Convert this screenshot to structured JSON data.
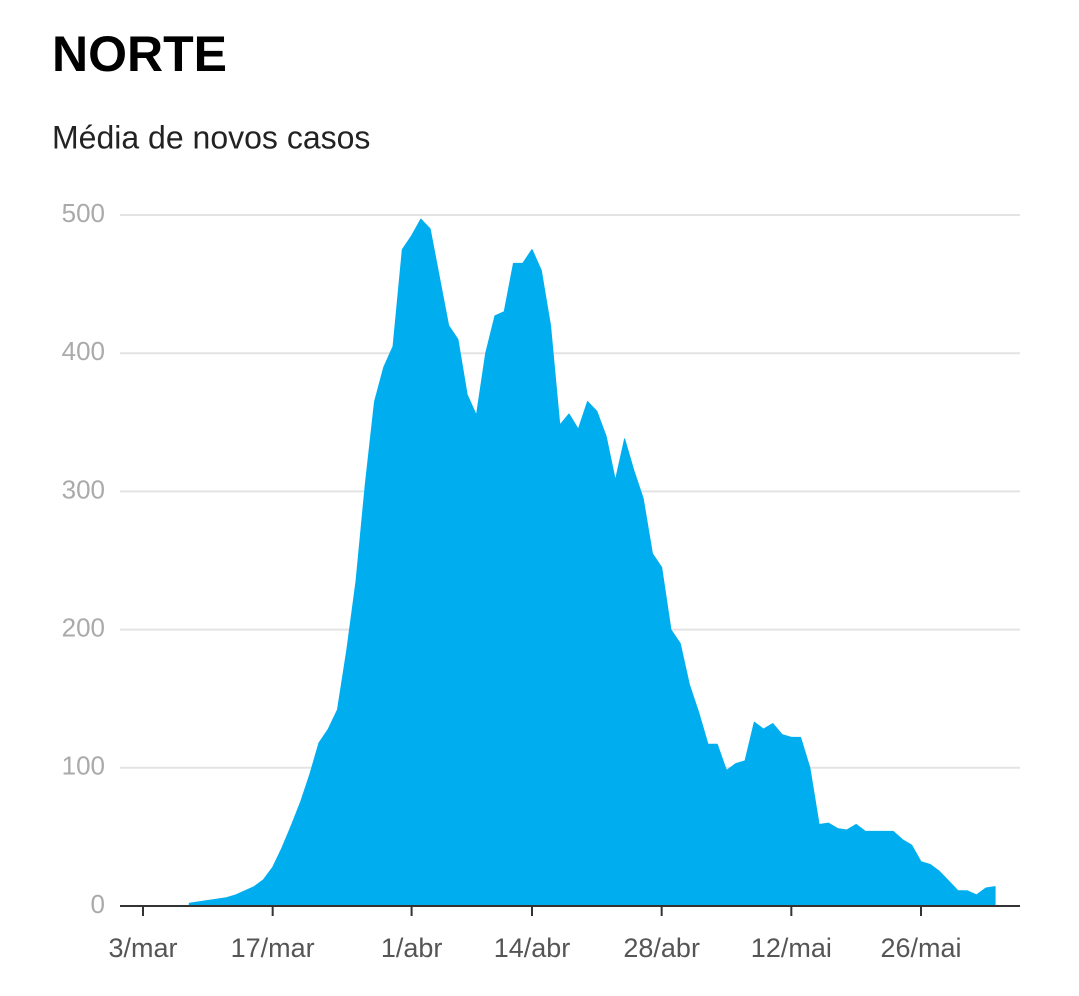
{
  "chart_data": {
    "type": "area",
    "title": "NORTE",
    "subtitle": "Média de novos casos",
    "color": "#00aeef",
    "grid": true,
    "ylim": [
      0,
      500
    ],
    "yticks": [
      0,
      100,
      200,
      300,
      400,
      500
    ],
    "categories": [
      "3/mar",
      null,
      null,
      null,
      null,
      null,
      null,
      null,
      null,
      null,
      null,
      null,
      null,
      null,
      "17/mar",
      null,
      null,
      null,
      null,
      null,
      null,
      null,
      null,
      null,
      null,
      null,
      null,
      null,
      null,
      "1/abr",
      null,
      null,
      null,
      null,
      null,
      null,
      null,
      null,
      null,
      null,
      null,
      null,
      "14/abr",
      null,
      null,
      null,
      null,
      null,
      null,
      null,
      null,
      null,
      null,
      null,
      null,
      null,
      "28/abr",
      null,
      null,
      null,
      null,
      null,
      null,
      null,
      null,
      null,
      null,
      null,
      null,
      null,
      "12/mai",
      null,
      null,
      null,
      null,
      null,
      null,
      null,
      null,
      null,
      null,
      null,
      null,
      null,
      "26/mai",
      null,
      null,
      null,
      null,
      null,
      null,
      null,
      null
    ],
    "values": [
      null,
      null,
      null,
      null,
      null,
      2,
      3,
      4,
      5,
      6,
      8,
      11,
      14,
      19,
      28,
      42,
      58,
      75,
      95,
      118,
      128,
      142,
      185,
      235,
      305,
      365,
      390,
      405,
      475,
      485,
      497,
      490,
      455,
      420,
      410,
      370,
      355,
      400,
      427,
      430,
      465,
      465,
      475,
      460,
      420,
      348,
      356,
      345,
      365,
      358,
      340,
      308,
      338,
      315,
      295,
      255,
      245,
      200,
      190,
      160,
      140,
      117,
      117,
      98,
      103,
      105,
      133,
      128,
      132,
      124,
      122,
      122,
      100,
      59,
      60,
      56,
      55,
      59,
      54,
      54,
      54,
      54,
      48,
      44,
      32,
      30,
      25,
      18,
      11,
      11,
      8,
      13,
      14
    ]
  }
}
